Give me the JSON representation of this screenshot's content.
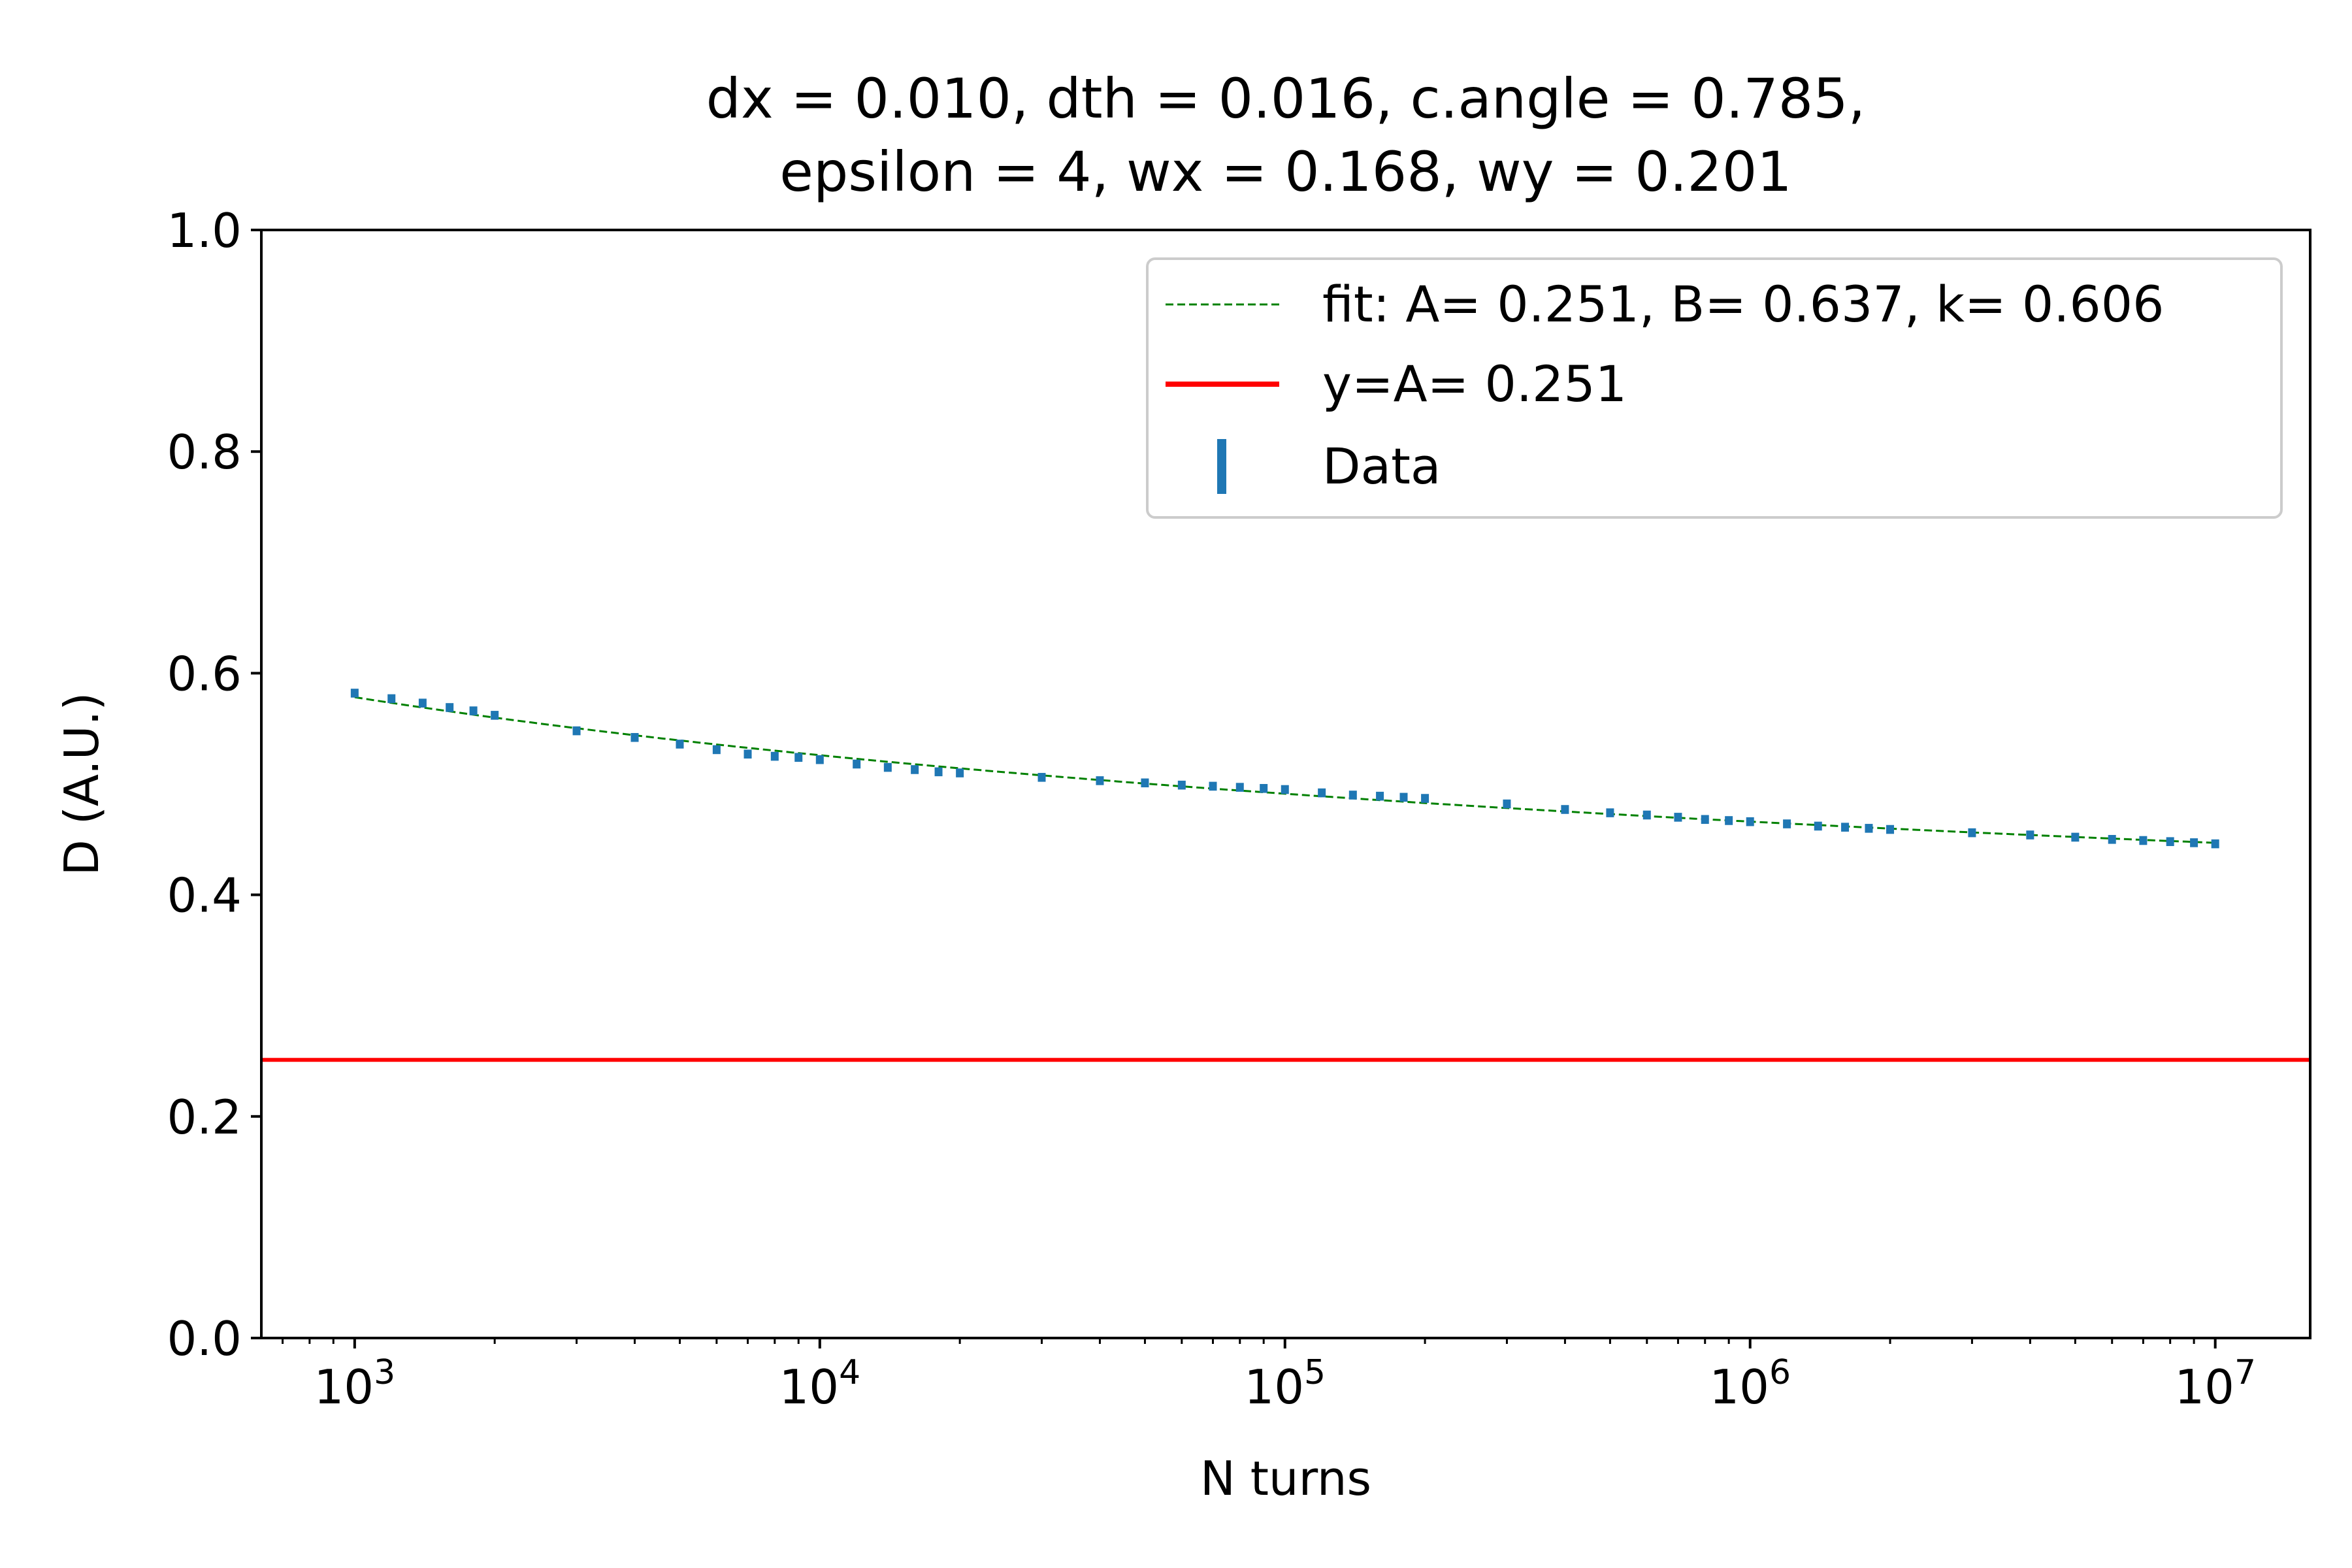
{
  "chart_data": {
    "type": "scatter",
    "title_lines": [
      "dx = 0.010, dth = 0.016, c.angle = 0.785,",
      "epsilon =  4, wx = 0.168, wy = 0.201"
    ],
    "xlabel": "N turns",
    "ylabel": "D (A.U.)",
    "x_scale": "log",
    "xlim": [
      630,
      16000000
    ],
    "ylim": [
      0.0,
      1.0
    ],
    "x_ticks": [
      {
        "value": 1000,
        "base": "10",
        "exp": "3"
      },
      {
        "value": 10000,
        "base": "10",
        "exp": "4"
      },
      {
        "value": 100000,
        "base": "10",
        "exp": "5"
      },
      {
        "value": 1000000,
        "base": "10",
        "exp": "6"
      },
      {
        "value": 10000000,
        "base": "10",
        "exp": "7"
      }
    ],
    "y_ticks": [
      {
        "value": 0.0,
        "label": "0.0"
      },
      {
        "value": 0.2,
        "label": "0.2"
      },
      {
        "value": 0.4,
        "label": "0.4"
      },
      {
        "value": 0.6,
        "label": "0.6"
      },
      {
        "value": 0.8,
        "label": "0.8"
      },
      {
        "value": 1.0,
        "label": "1.0"
      }
    ],
    "grid": false,
    "legend_position": "top-right",
    "legend": [
      {
        "label": "fit: A= 0.251, B= 0.637, k= 0.606",
        "style": "dashed-line",
        "color": "#008000"
      },
      {
        "label": "y=A= 0.251",
        "style": "solid-line",
        "color": "#ff0000"
      },
      {
        "label": "Data",
        "style": "errorbar",
        "color": "#1f77b4"
      }
    ],
    "fit": {
      "A": 0.251,
      "B": 0.637,
      "k": 0.606,
      "color": "#008000",
      "x_range": [
        1000,
        10000000
      ]
    },
    "hline": {
      "y": 0.251,
      "color": "#ff0000"
    },
    "data_color": "#1f77b4",
    "series": [
      {
        "x": [
          1000,
          1200,
          1400,
          1600,
          1800,
          2000,
          3000,
          4000,
          5000,
          6000,
          7000,
          8000,
          9000,
          10000,
          12000,
          14000,
          16000,
          18000,
          20000,
          30000,
          40000,
          50000,
          60000,
          70000,
          80000,
          90000,
          100000,
          120000,
          140000,
          160000,
          180000,
          200000,
          300000,
          400000,
          500000,
          600000,
          700000,
          800000,
          900000,
          1000000,
          1200000,
          1400000,
          1600000,
          1800000,
          2000000,
          3000000,
          4000000,
          5000000,
          6000000,
          7000000,
          8000000,
          9000000,
          10000000
        ],
        "y": [
          0.582,
          0.577,
          0.573,
          0.569,
          0.566,
          0.562,
          0.548,
          0.542,
          0.536,
          0.531,
          0.527,
          0.525,
          0.524,
          0.522,
          0.518,
          0.515,
          0.513,
          0.511,
          0.51,
          0.506,
          0.503,
          0.501,
          0.499,
          0.498,
          0.497,
          0.496,
          0.495,
          0.492,
          0.49,
          0.489,
          0.488,
          0.487,
          0.482,
          0.477,
          0.474,
          0.472,
          0.47,
          0.468,
          0.467,
          0.466,
          0.464,
          0.462,
          0.461,
          0.46,
          0.459,
          0.456,
          0.454,
          0.452,
          0.45,
          0.449,
          0.448,
          0.447,
          0.446
        ],
        "err": [
          0.004,
          0.004,
          0.004,
          0.004,
          0.004,
          0.004,
          0.004,
          0.004,
          0.004,
          0.004,
          0.004,
          0.004,
          0.004,
          0.004,
          0.004,
          0.004,
          0.004,
          0.004,
          0.004,
          0.004,
          0.004,
          0.004,
          0.004,
          0.004,
          0.004,
          0.004,
          0.004,
          0.004,
          0.004,
          0.004,
          0.004,
          0.004,
          0.004,
          0.004,
          0.004,
          0.004,
          0.004,
          0.004,
          0.004,
          0.004,
          0.004,
          0.004,
          0.004,
          0.004,
          0.004,
          0.004,
          0.004,
          0.004,
          0.004,
          0.004,
          0.004,
          0.004,
          0.004
        ]
      }
    ]
  }
}
